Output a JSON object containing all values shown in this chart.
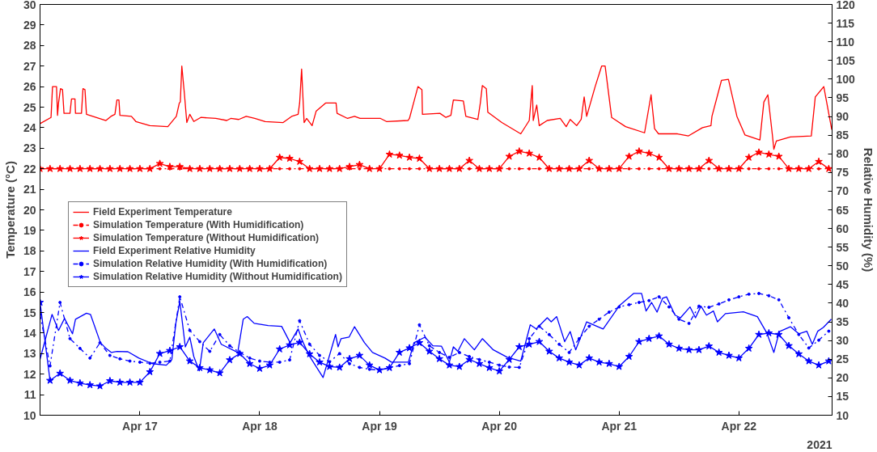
{
  "chart_data": {
    "type": "line",
    "ylabel": "Temperature (°C)",
    "y2label": "Relative Humidity (%)",
    "annotations": [
      "2021"
    ],
    "xlim": [
      "2021-04-16T04:00",
      "2021-04-22T18:40"
    ],
    "xticks": [
      {
        "value": "2021-04-17",
        "label": "Apr 17"
      },
      {
        "value": "2021-04-18",
        "label": "Apr 18"
      },
      {
        "value": "2021-04-19",
        "label": "Apr 19"
      },
      {
        "value": "2021-04-20",
        "label": "Apr 20"
      },
      {
        "value": "2021-04-21",
        "label": "Apr 21"
      },
      {
        "value": "2021-04-22",
        "label": "Apr 22"
      }
    ],
    "ylim": [
      10,
      30
    ],
    "yticks": [
      10,
      11,
      12,
      13,
      14,
      15,
      16,
      17,
      18,
      19,
      20,
      21,
      22,
      23,
      24,
      25,
      26,
      27,
      28,
      29,
      30
    ],
    "y2lim": [
      10,
      120
    ],
    "y2ticks": [
      10,
      15,
      20,
      25,
      30,
      35,
      40,
      45,
      50,
      55,
      60,
      65,
      70,
      75,
      80,
      85,
      90,
      95,
      100,
      105,
      110,
      115,
      120
    ],
    "grid": false,
    "legend": "left",
    "x": [
      "2021-04-16T04:00",
      "2021-04-16T06:00",
      "2021-04-16T08:00",
      "2021-04-16T10:00",
      "2021-04-16T12:00",
      "2021-04-16T14:00",
      "2021-04-16T16:00",
      "2021-04-16T18:00",
      "2021-04-16T20:00",
      "2021-04-16T22:00",
      "2021-04-17T00:00",
      "2021-04-17T02:00",
      "2021-04-17T04:00",
      "2021-04-17T06:00",
      "2021-04-17T08:00",
      "2021-04-17T10:00",
      "2021-04-17T12:00",
      "2021-04-17T14:00",
      "2021-04-17T16:00",
      "2021-04-17T18:00",
      "2021-04-17T20:00",
      "2021-04-17T22:00",
      "2021-04-18T00:00",
      "2021-04-18T02:00",
      "2021-04-18T04:00",
      "2021-04-18T06:00",
      "2021-04-18T08:00",
      "2021-04-18T10:00",
      "2021-04-18T12:00",
      "2021-04-18T14:00",
      "2021-04-18T16:00",
      "2021-04-18T18:00",
      "2021-04-18T20:00",
      "2021-04-18T22:00",
      "2021-04-19T00:00",
      "2021-04-19T02:00",
      "2021-04-19T04:00",
      "2021-04-19T06:00",
      "2021-04-19T08:00",
      "2021-04-19T10:00",
      "2021-04-19T12:00",
      "2021-04-19T14:00",
      "2021-04-19T16:00",
      "2021-04-19T18:00",
      "2021-04-19T20:00",
      "2021-04-19T22:00",
      "2021-04-20T00:00",
      "2021-04-20T02:00",
      "2021-04-20T04:00",
      "2021-04-20T06:00",
      "2021-04-20T08:00",
      "2021-04-20T10:00",
      "2021-04-20T12:00",
      "2021-04-20T14:00",
      "2021-04-20T16:00",
      "2021-04-20T18:00",
      "2021-04-20T20:00",
      "2021-04-20T22:00",
      "2021-04-21T00:00",
      "2021-04-21T02:00",
      "2021-04-21T04:00",
      "2021-04-21T06:00",
      "2021-04-21T08:00",
      "2021-04-21T10:00",
      "2021-04-21T12:00",
      "2021-04-21T14:00",
      "2021-04-21T16:00",
      "2021-04-21T18:00",
      "2021-04-21T20:00",
      "2021-04-21T22:00",
      "2021-04-22T00:00",
      "2021-04-22T02:00",
      "2021-04-22T04:00",
      "2021-04-22T06:00",
      "2021-04-22T08:00",
      "2021-04-22T10:00",
      "2021-04-22T12:00",
      "2021-04-22T14:00",
      "2021-04-22T16:00",
      "2021-04-22T18:00"
    ],
    "series": [
      {
        "name": "Field Experiment Temperature",
        "color": "#ff0000",
        "marker": "none",
        "line_style": "solid",
        "x": [
          "2021-04-16T04:00",
          "2021-04-16T06:12",
          "2021-04-16T06:30",
          "2021-04-16T07:18",
          "2021-04-16T07:30",
          "2021-04-16T07:42",
          "2021-04-16T08:06",
          "2021-04-16T08:30",
          "2021-04-16T08:48",
          "2021-04-16T10:00",
          "2021-04-16T10:18",
          "2021-04-16T11:00",
          "2021-04-16T11:06",
          "2021-04-16T12:18",
          "2021-04-16T12:36",
          "2021-04-16T13:00",
          "2021-04-16T13:18",
          "2021-04-16T17:12",
          "2021-04-16T18:12",
          "2021-04-16T19:00",
          "2021-04-16T19:24",
          "2021-04-16T19:48",
          "2021-04-16T20:00",
          "2021-04-16T22:18",
          "2021-04-16T23:12",
          "2021-04-17T02:00",
          "2021-04-17T05:36",
          "2021-04-17T07:18",
          "2021-04-17T07:54",
          "2021-04-17T08:06",
          "2021-04-17T08:24",
          "2021-04-17T08:54",
          "2021-04-17T09:24",
          "2021-04-17T10:00",
          "2021-04-17T10:48",
          "2021-04-17T12:12",
          "2021-04-17T15:12",
          "2021-04-17T17:24",
          "2021-04-17T18:12",
          "2021-04-17T19:48",
          "2021-04-17T21:18",
          "2021-04-17T23:00",
          "2021-04-18T01:06",
          "2021-04-18T04:42",
          "2021-04-18T06:24",
          "2021-04-18T07:42",
          "2021-04-18T08:00",
          "2021-04-18T08:24",
          "2021-04-18T08:54",
          "2021-04-18T09:24",
          "2021-04-18T10:30",
          "2021-04-18T11:18",
          "2021-04-18T13:12",
          "2021-04-18T15:18",
          "2021-04-18T15:30",
          "2021-04-18T17:36",
          "2021-04-18T19:00",
          "2021-04-18T20:06",
          "2021-04-19T00:12",
          "2021-04-19T01:24",
          "2021-04-19T05:42",
          "2021-04-19T06:00",
          "2021-04-19T07:42",
          "2021-04-19T08:30",
          "2021-04-19T08:36",
          "2021-04-19T12:06",
          "2021-04-19T13:18",
          "2021-04-19T14:18",
          "2021-04-19T14:48",
          "2021-04-19T16:48",
          "2021-04-19T17:18",
          "2021-04-19T19:42",
          "2021-04-19T20:12",
          "2021-04-19T20:36",
          "2021-04-19T21:24",
          "2021-04-19T21:42",
          "2021-04-20T00:30",
          "2021-04-20T04:18",
          "2021-04-20T06:00",
          "2021-04-20T06:36",
          "2021-04-20T06:48",
          "2021-04-20T07:30",
          "2021-04-20T08:00",
          "2021-04-20T09:36",
          "2021-04-20T12:12",
          "2021-04-20T13:24",
          "2021-04-20T14:12",
          "2021-04-20T15:30",
          "2021-04-20T16:24",
          "2021-04-20T17:00",
          "2021-04-20T17:30",
          "2021-04-20T19:12",
          "2021-04-20T20:30",
          "2021-04-20T21:12",
          "2021-04-20T22:30",
          "2021-04-21T01:18",
          "2021-04-21T05:06",
          "2021-04-21T06:24",
          "2021-04-21T07:06",
          "2021-04-21T07:54",
          "2021-04-21T11:42",
          "2021-04-21T13:54",
          "2021-04-21T16:42",
          "2021-04-21T18:24",
          "2021-04-21T18:36",
          "2021-04-21T20:30",
          "2021-04-21T21:54",
          "2021-04-21T23:36",
          "2021-04-22T01:12",
          "2021-04-22T04:12",
          "2021-04-22T05:00",
          "2021-04-22T05:48",
          "2021-04-22T06:42",
          "2021-04-22T07:00",
          "2021-04-22T07:30",
          "2021-04-22T10:18",
          "2021-04-22T14:30",
          "2021-04-22T15:18",
          "2021-04-22T17:00",
          "2021-04-22T18:36"
        ],
        "values": [
          24.2,
          24.5,
          26.0,
          26.0,
          24.6,
          25.2,
          25.9,
          25.85,
          24.7,
          24.7,
          25.4,
          25.4,
          24.7,
          24.7,
          25.9,
          25.85,
          24.65,
          24.35,
          24.55,
          24.65,
          25.35,
          25.35,
          24.6,
          24.55,
          24.3,
          24.1,
          24.05,
          24.55,
          25.2,
          25.25,
          27.0,
          25.7,
          24.25,
          24.65,
          24.3,
          24.5,
          24.45,
          24.35,
          24.45,
          24.4,
          24.55,
          24.45,
          24.3,
          24.25,
          24.55,
          24.65,
          25.2,
          26.85,
          24.25,
          24.45,
          24.1,
          24.8,
          25.2,
          25.2,
          24.7,
          24.45,
          24.55,
          24.45,
          24.45,
          24.3,
          24.35,
          24.45,
          26.0,
          25.85,
          24.65,
          24.7,
          24.5,
          24.6,
          25.35,
          25.3,
          24.55,
          24.4,
          25.2,
          26.05,
          25.9,
          24.75,
          24.25,
          23.7,
          24.35,
          26.05,
          24.35,
          25.1,
          24.1,
          24.35,
          24.45,
          24.05,
          24.4,
          24.1,
          24.4,
          25.5,
          24.55,
          26.0,
          27.0,
          27.0,
          24.5,
          24.05,
          23.75,
          25.6,
          23.95,
          23.7,
          23.7,
          23.6,
          24.0,
          24.1,
          24.55,
          26.3,
          26.35,
          24.55,
          23.65,
          23.4,
          25.25,
          25.6,
          23.65,
          22.95,
          23.35,
          23.55,
          23.6,
          25.5,
          26.0,
          23.9
        ]
      },
      {
        "name": "Simulation Temperature (With Humidification)",
        "color": "#ff0000",
        "marker": "circle",
        "line_style": "dashdot",
        "values": [
          22,
          22,
          22,
          22,
          22,
          22,
          22,
          22,
          22,
          22,
          22,
          22,
          22,
          22,
          22,
          22,
          22,
          22,
          22,
          22,
          22,
          22,
          22,
          22,
          22,
          22,
          22,
          22,
          22,
          22,
          22,
          22,
          22,
          22,
          22,
          22,
          22,
          22,
          22,
          22,
          22,
          22,
          22,
          22,
          22,
          22,
          22,
          22,
          22,
          22,
          22,
          22,
          22,
          22,
          22,
          22,
          22,
          22,
          22,
          22,
          22,
          22,
          22,
          22,
          22,
          22,
          22,
          22,
          22,
          22,
          22,
          22,
          22,
          22,
          22,
          22,
          22,
          22,
          22,
          22
        ]
      },
      {
        "name": "Simulation Temperature (Without Humidification)",
        "color": "#ff0000",
        "marker": "star",
        "line_style": "solid",
        "values": [
          22,
          22,
          22,
          22,
          22,
          22,
          22,
          22,
          22,
          22,
          22,
          22,
          22.25,
          22.1,
          22.1,
          22,
          22,
          22,
          22,
          22,
          22,
          22,
          22,
          22,
          22.55,
          22.5,
          22.35,
          22,
          22,
          22,
          22,
          22.1,
          22.2,
          22,
          22,
          22.7,
          22.65,
          22.55,
          22.5,
          22,
          22,
          22,
          22,
          22.4,
          22,
          22,
          22,
          22.6,
          22.85,
          22.75,
          22.55,
          22,
          22,
          22,
          22,
          22.4,
          22,
          22,
          22,
          22.6,
          22.85,
          22.75,
          22.55,
          22,
          22,
          22,
          22,
          22.4,
          22,
          22,
          22,
          22.55,
          22.8,
          22.7,
          22.6,
          22,
          22,
          22,
          22.35,
          22
        ]
      },
      {
        "name": "Field Experiment Relative Humidity",
        "color": "#0000ff",
        "marker": "none",
        "line_style": "solid",
        "axis": "y2",
        "x": [
          "2021-04-16T04:00",
          "2021-04-16T06:24",
          "2021-04-16T07:42",
          "2021-04-16T08:54",
          "2021-04-16T10:30",
          "2021-04-16T11:06",
          "2021-04-16T13:18",
          "2021-04-16T14:06",
          "2021-04-16T16:06",
          "2021-04-16T17:12",
          "2021-04-16T18:18",
          "2021-04-16T19:24",
          "2021-04-16T21:36",
          "2021-04-16T23:48",
          "2021-04-17T02:30",
          "2021-04-17T05:18",
          "2021-04-17T06:24",
          "2021-04-17T07:12",
          "2021-04-17T08:00",
          "2021-04-17T09:06",
          "2021-04-17T10:00",
          "2021-04-17T10:48",
          "2021-04-17T11:54",
          "2021-04-17T12:42",
          "2021-04-17T14:54",
          "2021-04-17T16:18",
          "2021-04-17T19:36",
          "2021-04-17T20:42",
          "2021-04-17T21:30",
          "2021-04-17T22:54",
          "2021-04-18T01:42",
          "2021-04-18T04:24",
          "2021-04-18T06:06",
          "2021-04-18T07:42",
          "2021-04-18T08:30",
          "2021-04-18T09:54",
          "2021-04-18T12:42",
          "2021-04-18T15:12",
          "2021-04-18T15:42",
          "2021-04-18T16:18",
          "2021-04-18T17:54",
          "2021-04-18T19:00",
          "2021-04-18T21:00",
          "2021-04-18T22:36",
          "2021-04-19T01:06",
          "2021-04-19T02:24",
          "2021-04-19T05:48",
          "2021-04-19T06:54",
          "2021-04-19T09:06",
          "2021-04-19T10:42",
          "2021-04-19T12:24",
          "2021-04-19T14:00",
          "2021-04-19T14:48",
          "2021-04-19T15:42",
          "2021-04-19T17:00",
          "2021-04-19T19:00",
          "2021-04-19T20:36",
          "2021-04-19T22:48",
          "2021-04-20T01:36",
          "2021-04-20T04:18",
          "2021-04-20T06:12",
          "2021-04-20T07:24",
          "2021-04-20T09:36",
          "2021-04-20T10:24",
          "2021-04-20T11:30",
          "2021-04-20T13:06",
          "2021-04-20T14:12",
          "2021-04-20T15:18",
          "2021-04-20T17:30",
          "2021-04-20T20:48",
          "2021-04-21T00:06",
          "2021-04-21T02:54",
          "2021-04-21T04:30",
          "2021-04-21T05:24",
          "2021-04-21T06:30",
          "2021-04-21T07:36",
          "2021-04-21T08:42",
          "2021-04-21T09:30",
          "2021-04-21T11:12",
          "2021-04-21T12:18",
          "2021-04-21T14:12",
          "2021-04-21T15:18",
          "2021-04-21T16:24",
          "2021-04-21T17:30",
          "2021-04-21T18:54",
          "2021-04-21T19:42",
          "2021-04-21T21:18",
          "2021-04-22T00:54",
          "2021-04-22T03:42",
          "2021-04-22T05:36",
          "2021-04-22T07:00",
          "2021-04-22T08:06",
          "2021-04-22T10:18",
          "2021-04-22T12:00",
          "2021-04-22T13:36",
          "2021-04-22T14:42",
          "2021-04-22T15:48",
          "2021-04-22T16:54",
          "2021-04-22T18:30"
        ],
        "values": [
          25.0,
          37.0,
          32.7,
          35.9,
          31.8,
          35.7,
          37.3,
          37.0,
          29.4,
          27.9,
          26.8,
          27.1,
          27.0,
          25.3,
          23.8,
          23.4,
          24.9,
          34.6,
          40.5,
          28.3,
          30.9,
          25.7,
          21.9,
          29.4,
          33.1,
          29.0,
          26.8,
          35.7,
          36.4,
          34.6,
          34.0,
          33.8,
          29.4,
          33.1,
          30.1,
          26.0,
          20.1,
          31.6,
          28.3,
          30.5,
          30.9,
          33.7,
          29.4,
          26.8,
          25.3,
          24.2,
          24.2,
          29.4,
          30.9,
          28.6,
          28.5,
          24.2,
          28.3,
          27.1,
          30.5,
          27.5,
          30.5,
          27.5,
          25.5,
          24.5,
          34.2,
          33.1,
          36.1,
          35.0,
          36.4,
          29.7,
          32.4,
          27.5,
          35.0,
          33.1,
          39.4,
          42.6,
          42.6,
          37.9,
          40.2,
          37.6,
          41.3,
          41.7,
          36.8,
          36.1,
          39.0,
          36.1,
          39.2,
          36.8,
          37.9,
          35.0,
          37.2,
          37.7,
          36.4,
          32.0,
          26.8,
          32.4,
          33.7,
          31.8,
          32.5,
          29.0,
          32.5,
          33.5,
          35.7
        ]
      },
      {
        "name": "Simulation Relative Humidity (With Humidification)",
        "color": "#0000ff",
        "marker": "circle",
        "line_style": "dashdot",
        "axis": "y2",
        "values": [
          37.0,
          23.2,
          40.2,
          30.5,
          27.9,
          25.3,
          29.4,
          26.0,
          25.1,
          24.5,
          24.2,
          23.9,
          24.2,
          24.5,
          41.7,
          32.7,
          29.7,
          27.1,
          31.6,
          28.6,
          26.8,
          25.3,
          24.5,
          24.2,
          24.2,
          24.8,
          35.3,
          29.0,
          26.0,
          24.3,
          26.5,
          23.8,
          22.8,
          22.3,
          22.1,
          22.7,
          23.3,
          23.8,
          34.2,
          28.6,
          26.8,
          25.5,
          26.8,
          25.7,
          24.9,
          24.2,
          23.4,
          22.9,
          22.8,
          30.5,
          33.8,
          31.6,
          29.0,
          26.8,
          30.5,
          33.8,
          35.7,
          37.6,
          39.0,
          39.6,
          40.2,
          40.7,
          41.7,
          39.0,
          35.7,
          34.6,
          39.2,
          38.9,
          39.8,
          40.9,
          41.7,
          42.4,
          42.6,
          42.0,
          40.9,
          36.1,
          31.6,
          28.0,
          30.1,
          32.5
        ]
      },
      {
        "name": "Simulation Relative Humidity (Without Humidification)",
        "color": "#0000ff",
        "marker": "star",
        "line_style": "solid",
        "axis": "y2",
        "values": [
          40.2,
          19.3,
          21.2,
          19.3,
          18.6,
          18.1,
          17.8,
          19.2,
          18.8,
          18.8,
          18.8,
          21.6,
          26.5,
          27.3,
          28.3,
          24.5,
          22.7,
          22.1,
          21.3,
          24.8,
          26.5,
          23.8,
          22.5,
          23.4,
          27.7,
          28.8,
          29.5,
          26.4,
          24.2,
          23.0,
          22.8,
          25.1,
          26.0,
          23.4,
          22.1,
          22.7,
          26.8,
          28.0,
          29.4,
          27.1,
          25.1,
          23.4,
          23.0,
          24.9,
          23.8,
          22.7,
          21.8,
          24.9,
          28.3,
          29.0,
          29.7,
          27.1,
          25.3,
          24.2,
          23.4,
          25.3,
          24.2,
          23.8,
          23.0,
          25.7,
          29.7,
          30.5,
          31.2,
          29.0,
          27.9,
          27.5,
          27.5,
          28.5,
          26.8,
          26.0,
          25.3,
          27.9,
          31.6,
          32.0,
          31.6,
          28.6,
          26.4,
          24.5,
          23.4,
          24.5
        ]
      }
    ]
  }
}
